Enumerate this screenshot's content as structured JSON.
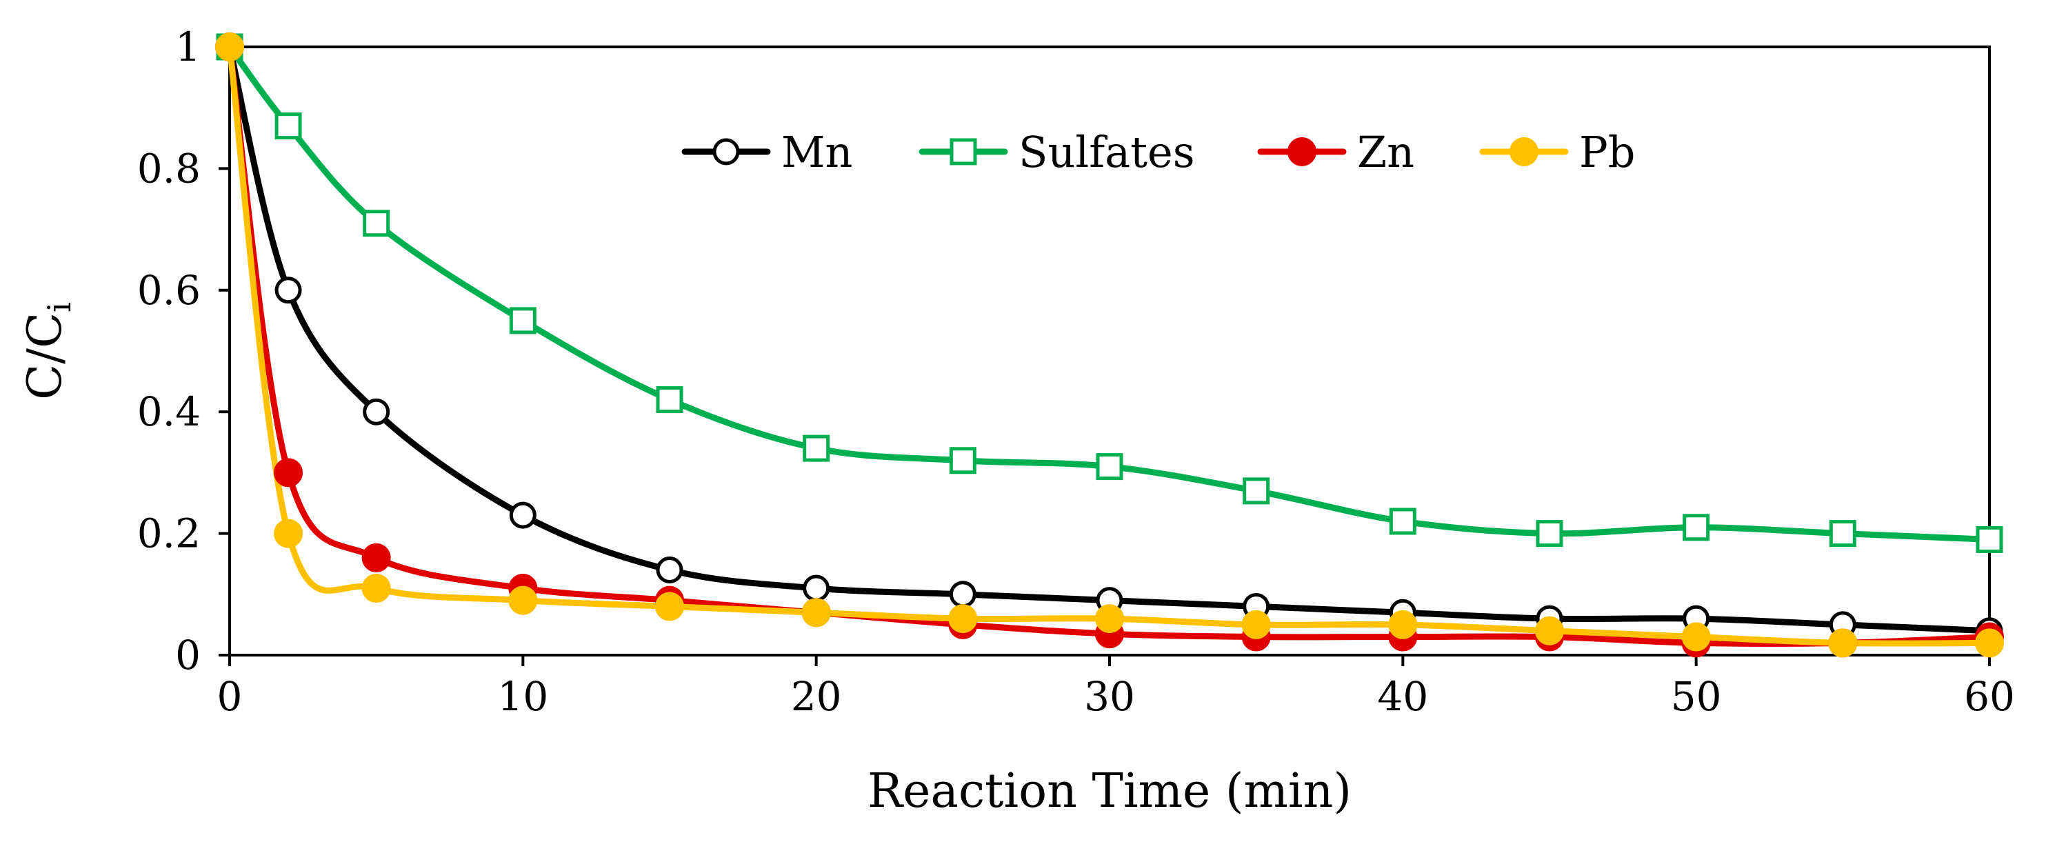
{
  "chart_data": {
    "type": "line",
    "title": "",
    "xlabel": "Reaction Time (min)",
    "ylabel_main": "C/C",
    "ylabel_sub": "i",
    "xlim": [
      0,
      60
    ],
    "ylim": [
      0,
      1
    ],
    "xticks": [
      "0",
      "10",
      "20",
      "30",
      "40",
      "50",
      "60"
    ],
    "yticks": [
      "0",
      "0.2",
      "0.4",
      "0.6",
      "0.8",
      "1"
    ],
    "grid": false,
    "legend_position": "top-center",
    "series": [
      {
        "name": "Mn",
        "color": "#000000",
        "marker": "open-circle",
        "x": [
          0,
          2,
          5,
          10,
          15,
          20,
          25,
          30,
          35,
          40,
          45,
          50,
          55,
          60
        ],
        "y": [
          1.0,
          0.6,
          0.4,
          0.23,
          0.14,
          0.11,
          0.1,
          0.09,
          0.08,
          0.07,
          0.06,
          0.06,
          0.05,
          0.04
        ]
      },
      {
        "name": "Sulfates",
        "color": "#00B050",
        "marker": "open-square",
        "x": [
          0,
          2,
          5,
          10,
          15,
          20,
          25,
          30,
          35,
          40,
          45,
          50,
          55,
          60
        ],
        "y": [
          1.0,
          0.87,
          0.71,
          0.55,
          0.42,
          0.34,
          0.32,
          0.31,
          0.27,
          0.22,
          0.2,
          0.21,
          0.2,
          0.19
        ]
      },
      {
        "name": "Zn",
        "color": "#E00000",
        "marker": "filled-circle",
        "x": [
          0,
          2,
          5,
          10,
          15,
          20,
          25,
          30,
          35,
          40,
          45,
          50,
          55,
          60
        ],
        "y": [
          1.0,
          0.3,
          0.16,
          0.11,
          0.09,
          0.07,
          0.05,
          0.035,
          0.03,
          0.03,
          0.03,
          0.02,
          0.02,
          0.03
        ]
      },
      {
        "name": "Pb",
        "color": "#FFC000",
        "marker": "filled-circle",
        "x": [
          0,
          2,
          5,
          10,
          15,
          20,
          25,
          30,
          35,
          40,
          45,
          50,
          55,
          60
        ],
        "y": [
          1.0,
          0.2,
          0.11,
          0.09,
          0.08,
          0.07,
          0.06,
          0.06,
          0.05,
          0.05,
          0.04,
          0.03,
          0.02,
          0.02
        ]
      }
    ]
  }
}
